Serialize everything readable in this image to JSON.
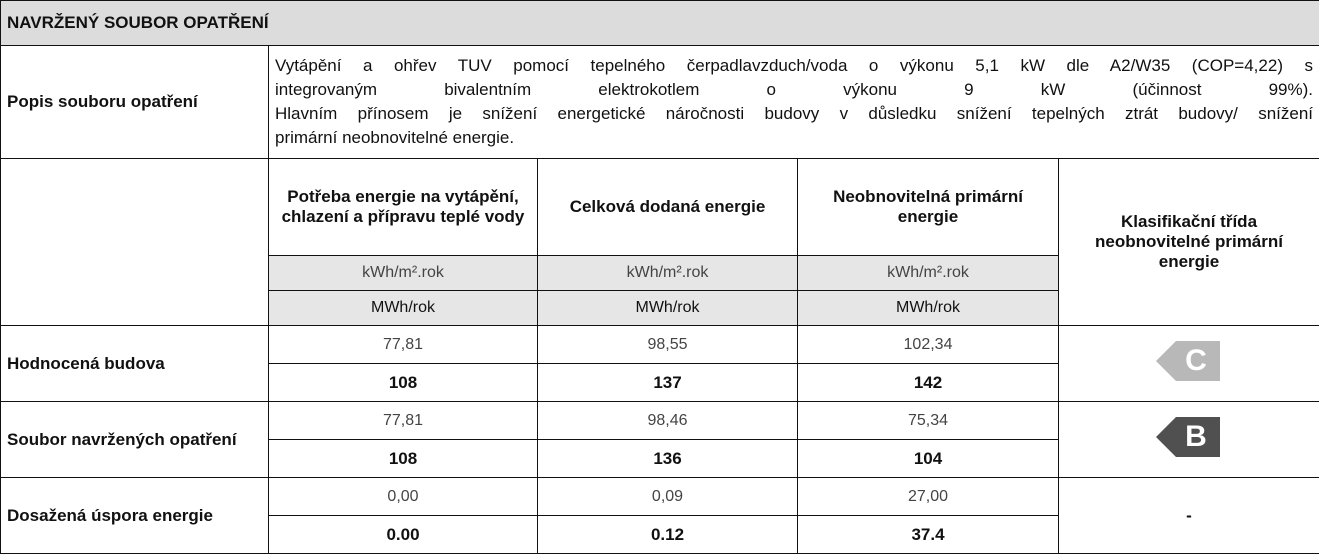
{
  "header": {
    "title": "NAVRŽENÝ SOUBOR OPATŘENÍ"
  },
  "description": {
    "label": "Popis souboru opatření",
    "lines": [
      "Vytápění a ohřev TUV pomocí tepelného čerpadlavzduch/voda o výkonu 5,1 kW dle A2/W35 (COP=4,22) s",
      "integrovaným bivalentním elektrokotlem o výkonu 9 kW (účinnost 99%).",
      "Hlavním přínosem je snížení energetické náročnosti budovy v důsledku snížení tepelných ztrát budovy/ snížení",
      "primární neobnovitelné energie."
    ]
  },
  "table": {
    "columns": [
      "Potřeba energie na vytápění, chlazení a přípravu teplé vody",
      "Celková dodaná energie",
      "Neobnovitelná primární energie"
    ],
    "class_header": "Klasifikační třída neobnovitelné primární energie",
    "units": [
      "kWh/m².rok",
      "kWh/m².rok",
      "kWh/m².rok"
    ],
    "units2": [
      "MWh/rok",
      "MWh/rok",
      "MWh/rok"
    ],
    "rows": [
      {
        "label": "Hodnocená budova",
        "values": [
          "77,81",
          "98,55",
          "102,34"
        ],
        "totals": [
          "108",
          "137",
          "142"
        ],
        "class": "C"
      },
      {
        "label": "Soubor navržených opatření",
        "values": [
          "77,81",
          "98,46",
          "75,34"
        ],
        "totals": [
          "108",
          "136",
          "104"
        ],
        "class": "B"
      },
      {
        "label": "Dosažená úspora energie",
        "values": [
          "0,00",
          "0,09",
          "27,00"
        ],
        "totals": [
          "0.00",
          "0.12",
          "37.4"
        ],
        "class": "-"
      }
    ]
  }
}
